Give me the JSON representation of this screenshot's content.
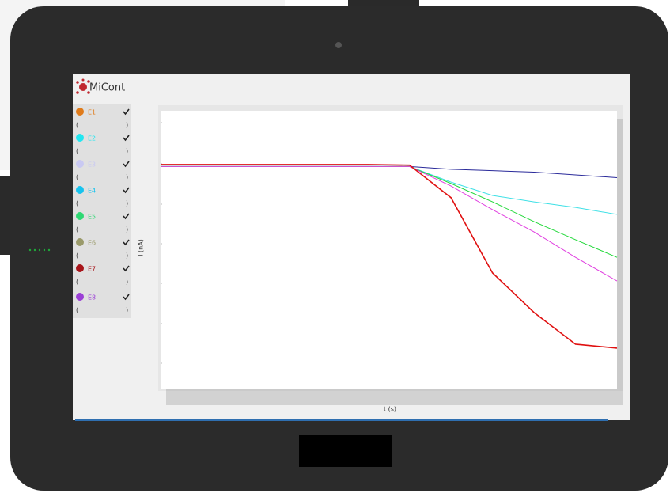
{
  "app": {
    "title": "MiCont"
  },
  "sidebar": {
    "channels": [
      {
        "label": "E1",
        "color": "#e07b1a",
        "detail": [
          "(",
          ")"
        ]
      },
      {
        "label": "E2",
        "color": "#22e6f0",
        "detail": [
          "(",
          ")"
        ]
      },
      {
        "label": "E3",
        "color": "#c9c9f2",
        "detail": [
          "(",
          ")"
        ]
      },
      {
        "label": "E4",
        "color": "#17c3ee",
        "detail": [
          "(",
          ")"
        ]
      },
      {
        "label": "E5",
        "color": "#2ed873",
        "detail": [
          "(",
          ")"
        ]
      },
      {
        "label": "E6",
        "color": "#9a9a6a",
        "detail": [
          "(",
          ")"
        ]
      },
      {
        "label": "E7",
        "color": "#a8141a",
        "detail": [
          "(",
          ")"
        ]
      },
      {
        "label": "E8",
        "color": "#9b3fd6",
        "detail": [
          "(",
          ")"
        ]
      }
    ]
  },
  "chart_data": {
    "type": "line",
    "x_label": "t (s)",
    "y_label": "I (nA)",
    "ylim": [
      0,
      100
    ],
    "series": [
      {
        "color": "#2a2a9a",
        "values": [
          80,
          80,
          80,
          80,
          80,
          80,
          80,
          79,
          78.5,
          78,
          77,
          76
        ]
      },
      {
        "color": "#3ee0e6",
        "values": [
          80,
          80,
          80,
          80,
          80,
          80,
          80,
          74.4,
          69.6,
          67.3,
          65.3,
          62.8
        ]
      },
      {
        "color": "#22d83a",
        "values": [
          80,
          80,
          80,
          80,
          80,
          80,
          80,
          73.9,
          67.3,
          60.2,
          53.7,
          47.4
        ]
      },
      {
        "color": "#e040e0",
        "values": [
          80,
          80,
          80,
          80,
          80,
          80,
          80,
          73,
          64.5,
          56.5,
          47.4,
          38.9
        ]
      },
      {
        "color": "#e01010",
        "values": [
          80.7,
          80.7,
          80.7,
          80.7,
          80.7,
          80.7,
          80.5,
          68.8,
          41.8,
          27.6,
          16.2,
          14.8
        ]
      }
    ]
  }
}
